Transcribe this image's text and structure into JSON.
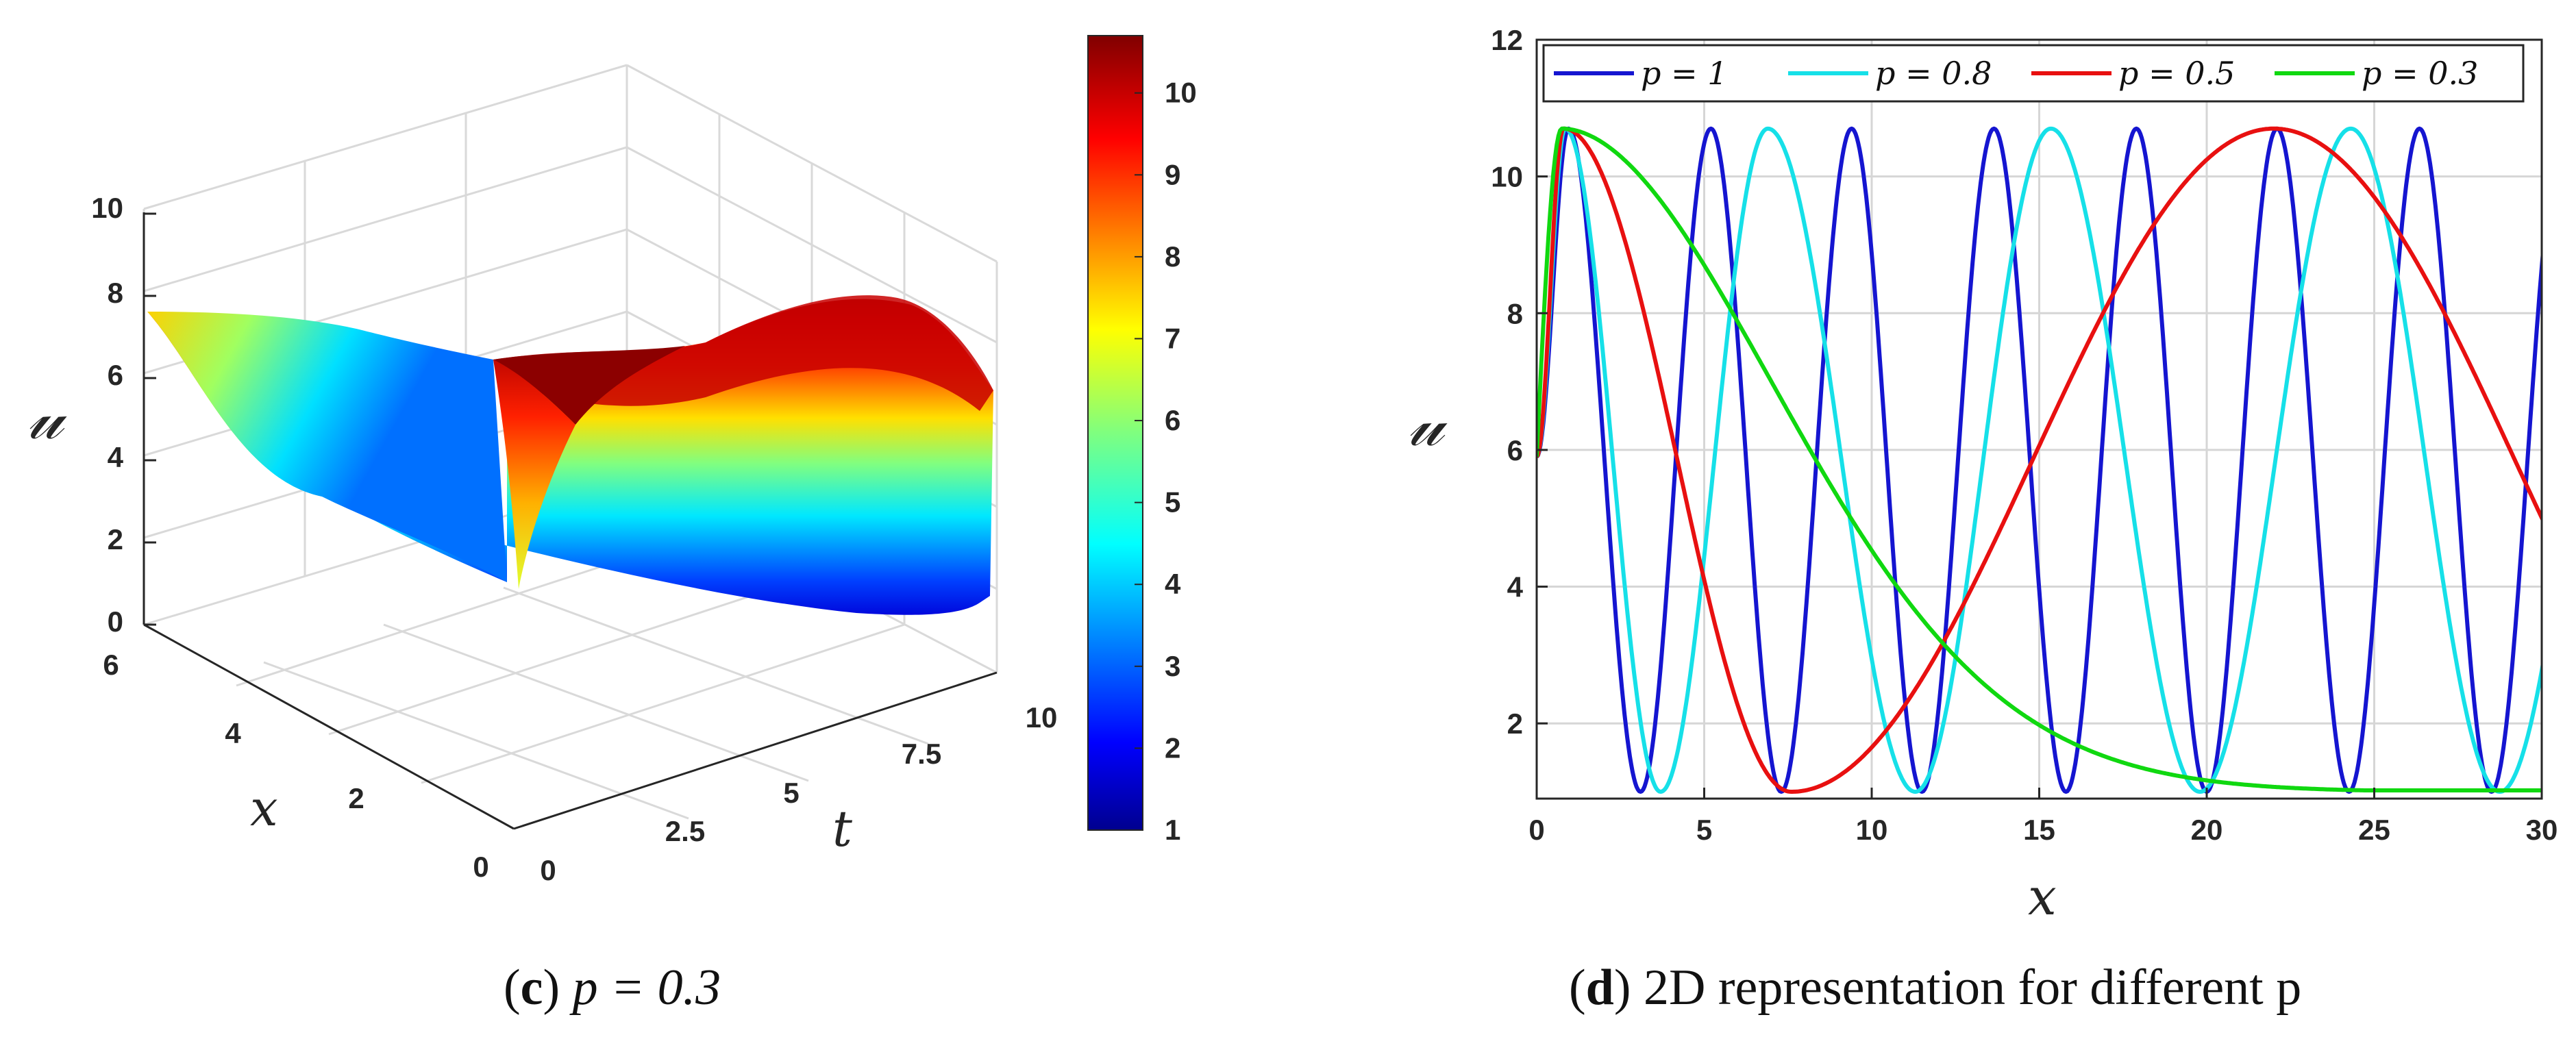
{
  "chart_data": [
    {
      "type": "surface",
      "caption_tag": "c",
      "caption_text": "p = 0.3",
      "zlabel": "𝓊",
      "xlabel": "x",
      "tlabel": "t",
      "z_ticks": [
        "0",
        "2",
        "4",
        "6",
        "8",
        "10"
      ],
      "x_ticks": [
        "0",
        "2",
        "4",
        "6"
      ],
      "t_ticks": [
        "0",
        "2.5",
        "5",
        "7.5",
        "10"
      ],
      "colorbar_ticks": [
        "1",
        "2",
        "3",
        "4",
        "5",
        "6",
        "7",
        "8",
        "9",
        "10"
      ],
      "colorbar_range": [
        1,
        10.7
      ],
      "colormap": "jet",
      "grid": true
    },
    {
      "type": "line",
      "caption_tag": "d",
      "caption_text": "2D representation for different p",
      "xlabel": "x",
      "ylabel": "𝓊",
      "xlim": [
        0,
        30
      ],
      "ylim": [
        0.9,
        12
      ],
      "x_ticks": [
        "0",
        "5",
        "10",
        "15",
        "20",
        "25",
        "30"
      ],
      "y_ticks": [
        "2",
        "4",
        "6",
        "8",
        "10",
        "12"
      ],
      "grid": true,
      "legend_position": "top",
      "amplitude_max": 10.7,
      "amplitude_min": 1.0,
      "start_value": 5.9,
      "series": [
        {
          "name": "p = 1",
          "color": "#1515d0",
          "peaks": [
            0.95,
            5.2,
            9.4,
            13.65,
            17.9,
            22.1,
            26.35
          ],
          "troughs": [
            3.1,
            7.3,
            11.5,
            15.8,
            20.0,
            24.25,
            28.5
          ]
        },
        {
          "name": "p = 0.8",
          "color": "#16e0e8",
          "peaks": [
            0.85,
            6.9,
            15.35,
            24.3
          ],
          "troughs": [
            3.7,
            11.3,
            19.8,
            28.75
          ]
        },
        {
          "name": "p = 0.5",
          "color": "#e81010",
          "peaks": [
            0.8,
            22.0
          ],
          "troughs": [
            7.6
          ]
        },
        {
          "name": "p = 0.3",
          "color": "#10d810",
          "peaks": [
            0.75
          ],
          "troughs": [],
          "tail_end": 1.02
        }
      ]
    }
  ]
}
